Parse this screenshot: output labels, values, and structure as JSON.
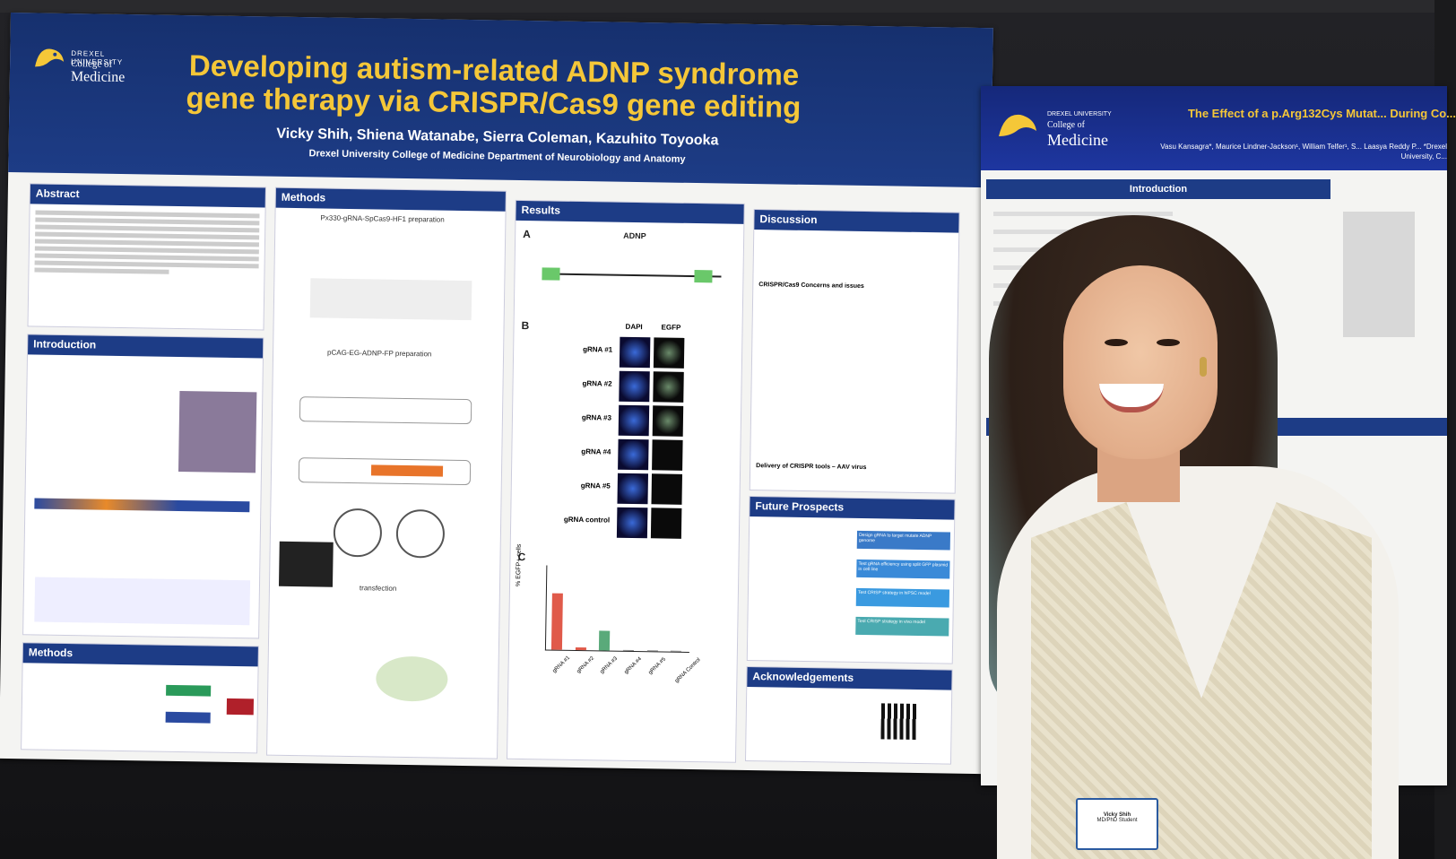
{
  "poster": {
    "university": "DREXEL UNIVERSITY",
    "college": "College of",
    "medicine": "Medicine",
    "title_line1": "Developing autism-related ADNP syndrome",
    "title_line2": "gene therapy via CRISPR/Cas9 gene editing",
    "authors": "Vicky Shih, Shiena Watanabe, Sierra Coleman, Kazuhito Toyooka",
    "affiliation": "Drexel University College of Medicine Department of Neurobiology and Anatomy",
    "sections": {
      "abstract": "Abstract",
      "introduction": "Introduction",
      "methods_left": "Methods",
      "methods": "Methods",
      "results": "Results",
      "discussion": "Discussion",
      "future": "Future Prospects",
      "ack": "Acknowledgements"
    },
    "methods_sub1": "Px330-gRNA-SpCas9-HF1 preparation",
    "methods_sub2": "pCAG-EG-ADNP-FP preparation",
    "methods_sub3": "transfection",
    "results_gene": "ADNP",
    "results_labels": [
      "gRNA #1",
      "gRNA #2",
      "gRNA #3",
      "gRNA #4",
      "gRNA #5",
      "gRNA control"
    ],
    "results_cols": [
      "DAPI",
      "EGFP"
    ],
    "panel_a": "A",
    "panel_b": "B",
    "panel_c": "C",
    "ylabel": "% EGFP+ cells",
    "discussion_sub1": "CRISPR/Cas9 Concerns and issues",
    "discussion_sub2": "Delivery of CRISPR tools – AAV virus",
    "future_steps": [
      "Design gRNA to target mutate ADNP genome",
      "Test gRNA efficiency using split GFP plasmid in cell line",
      "Test CRISP strategy in hiPSC model",
      "Test CRISP strategy in vivo model"
    ]
  },
  "chart_data": {
    "type": "bar",
    "categories": [
      "gRNA #1",
      "gRNA #2",
      "gRNA #3",
      "gRNA #4",
      "gRNA #5",
      "gRNA Control"
    ],
    "values": [
      20,
      1,
      7,
      0,
      0,
      0
    ],
    "ylabel": "% EGFP+ cells",
    "ylim": [
      0,
      30
    ],
    "colors": [
      "#e05a4a",
      "#e05a4a",
      "#5aaa7a",
      "#888888",
      "#888888",
      "#888888"
    ]
  },
  "poster2": {
    "college": "College of",
    "medicine": "Medicine",
    "university": "DREXEL UNIVERSITY",
    "title": "The Effect of a p.Arg132Cys Mutat... During Co...",
    "authors": "Vasu Kansagra*, Maurice Lindner-Jackson¹, William Telfer¹, S... Laasya Reddy P... *Drexel University, C...",
    "introduction": "Introduction"
  },
  "badge": {
    "name": "Vicky Shih",
    "role": "MD/PhD Student"
  }
}
